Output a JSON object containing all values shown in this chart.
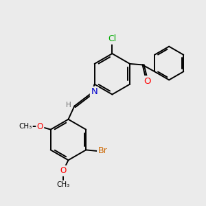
{
  "background_color": "#ebebeb",
  "bond_color": "#000000",
  "atom_colors": {
    "Cl": "#00aa00",
    "O": "#ff0000",
    "N": "#0000cc",
    "Br": "#cc6600",
    "H": "#666666",
    "C": "#000000"
  },
  "bond_width": 1.4,
  "font_size": 8.5,
  "figsize": [
    3.0,
    3.0
  ],
  "dpi": 100,
  "xlim": [
    0,
    10
  ],
  "ylim": [
    0,
    10
  ]
}
